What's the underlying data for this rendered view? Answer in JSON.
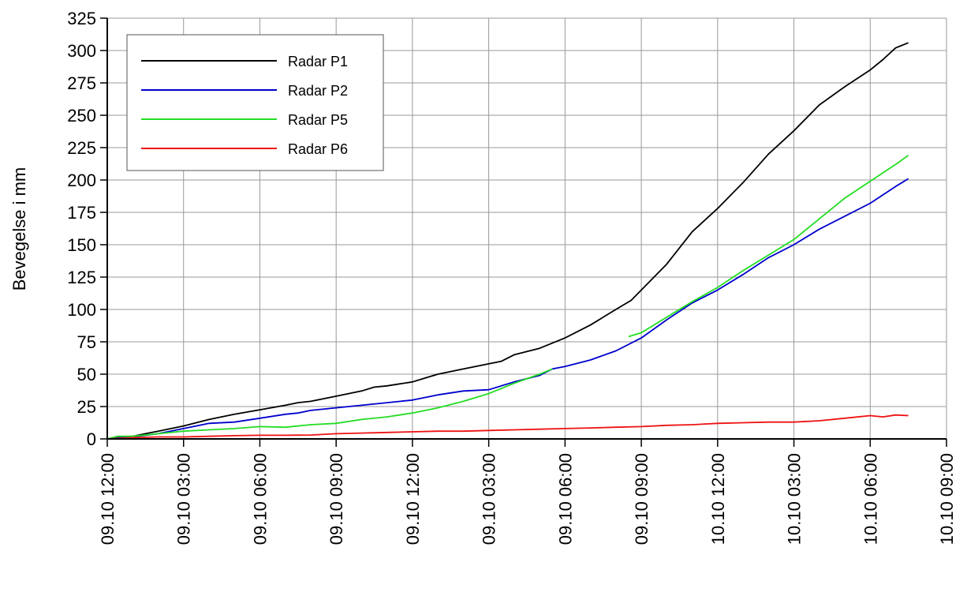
{
  "chart_data": {
    "type": "line",
    "ylabel": "Bevegelse i mm",
    "xlabel": "",
    "title": "",
    "ylim": [
      0,
      325
    ],
    "yticks": [
      0,
      25,
      50,
      75,
      100,
      125,
      150,
      175,
      200,
      225,
      250,
      275,
      300,
      325
    ],
    "x_unit": "hours since 09.10 12:00",
    "xlim": [
      0,
      33
    ],
    "xticks": [
      {
        "value": 0,
        "label": "09.10 12:00"
      },
      {
        "value": 3,
        "label": "09.10 03:00"
      },
      {
        "value": 6,
        "label": "09.10 06:00"
      },
      {
        "value": 9,
        "label": "09.10 09:00"
      },
      {
        "value": 12,
        "label": "09.10 12:00"
      },
      {
        "value": 15,
        "label": "09.10 03:00"
      },
      {
        "value": 18,
        "label": "09.10 06:00"
      },
      {
        "value": 21,
        "label": "09.10 09:00"
      },
      {
        "value": 24,
        "label": "10.10 12:00"
      },
      {
        "value": 27,
        "label": "10.10 03:00"
      },
      {
        "value": 30,
        "label": "10.10 06:00"
      },
      {
        "value": 33,
        "label": "10.10 09:00"
      }
    ],
    "grid": true,
    "legend_position": "top-left",
    "series": [
      {
        "name": "Radar P1",
        "color": "#000000",
        "segments": [
          [
            [
              0,
              0
            ],
            [
              0.4,
              1.5
            ],
            [
              1,
              2
            ],
            [
              1.5,
              4
            ],
            [
              2,
              6
            ],
            [
              3,
              10
            ],
            [
              4,
              15
            ],
            [
              5,
              19
            ],
            [
              6,
              22.5
            ],
            [
              7,
              26
            ],
            [
              7.5,
              28
            ],
            [
              8,
              29
            ],
            [
              9,
              33
            ],
            [
              10,
              37
            ],
            [
              10.5,
              40
            ],
            [
              11,
              41
            ],
            [
              12,
              44
            ],
            [
              12.5,
              47
            ],
            [
              13,
              50
            ],
            [
              14,
              54
            ],
            [
              15,
              58
            ],
            [
              15.5,
              60
            ],
            [
              16,
              65
            ],
            [
              17,
              70
            ],
            [
              18,
              78
            ],
            [
              19,
              88
            ],
            [
              20,
              100
            ],
            [
              20.6,
              107
            ],
            [
              21,
              115
            ],
            [
              22,
              135
            ],
            [
              23,
              160
            ],
            [
              24,
              178
            ],
            [
              25,
              198
            ],
            [
              26,
              220
            ],
            [
              27,
              238
            ],
            [
              28,
              258
            ],
            [
              29,
              272
            ],
            [
              30,
              285
            ],
            [
              30.5,
              293
            ],
            [
              31,
              302
            ],
            [
              31.5,
              306
            ]
          ]
        ]
      },
      {
        "name": "Radar P2",
        "color": "#0000cc",
        "segments": [
          [
            [
              0,
              0
            ],
            [
              0.4,
              1
            ],
            [
              1,
              1.5
            ],
            [
              2,
              4
            ],
            [
              3,
              8
            ],
            [
              4,
              12
            ],
            [
              5,
              13
            ],
            [
              6,
              16
            ],
            [
              7,
              19
            ],
            [
              7.5,
              20
            ],
            [
              8,
              22
            ],
            [
              9,
              24
            ],
            [
              10,
              26
            ],
            [
              11,
              28
            ],
            [
              12,
              30
            ],
            [
              13,
              34
            ],
            [
              14,
              37
            ],
            [
              15,
              38
            ],
            [
              16,
              44
            ],
            [
              17,
              49
            ],
            [
              17.5,
              54
            ],
            [
              18,
              56
            ],
            [
              19,
              61
            ],
            [
              20,
              68
            ],
            [
              21,
              78
            ],
            [
              22,
              92
            ],
            [
              23,
              105
            ],
            [
              24,
              115
            ],
            [
              25,
              127
            ],
            [
              26,
              140
            ],
            [
              27,
              150
            ],
            [
              28,
              162
            ],
            [
              29,
              172
            ],
            [
              30,
              182
            ],
            [
              31,
              195
            ],
            [
              31.5,
              201
            ]
          ]
        ]
      },
      {
        "name": "Radar P5",
        "color": "#22dd22",
        "segments": [
          [
            [
              0,
              0
            ],
            [
              0.4,
              2
            ],
            [
              1,
              2
            ],
            [
              2,
              4
            ],
            [
              3,
              6
            ],
            [
              4,
              7
            ],
            [
              5,
              8
            ],
            [
              6,
              9.5
            ],
            [
              7,
              9
            ],
            [
              8,
              11
            ],
            [
              9,
              12
            ],
            [
              10,
              15
            ],
            [
              11,
              17
            ],
            [
              12,
              20
            ],
            [
              13,
              24
            ],
            [
              14,
              29
            ],
            [
              15,
              35
            ],
            [
              16,
              43
            ],
            [
              17,
              50
            ],
            [
              17.5,
              54
            ]
          ],
          [
            [
              20.5,
              79
            ],
            [
              21,
              82
            ],
            [
              22,
              94
            ],
            [
              23,
              106
            ],
            [
              24,
              117
            ],
            [
              25,
              130
            ],
            [
              26,
              142
            ],
            [
              27,
              154
            ],
            [
              28,
              170
            ],
            [
              29,
              186
            ],
            [
              30,
              199
            ],
            [
              31,
              212
            ],
            [
              31.5,
              219
            ]
          ]
        ]
      },
      {
        "name": "Radar P6",
        "color": "#ee1111",
        "segments": [
          [
            [
              0,
              0
            ],
            [
              1,
              1
            ],
            [
              2,
              1.5
            ],
            [
              3,
              1.5
            ],
            [
              4,
              2
            ],
            [
              5,
              2.5
            ],
            [
              6,
              2.8
            ],
            [
              7,
              2.8
            ],
            [
              8,
              3
            ],
            [
              9,
              4
            ],
            [
              10,
              4.5
            ],
            [
              11,
              5
            ],
            [
              12,
              5.5
            ],
            [
              13,
              6
            ],
            [
              14,
              6
            ],
            [
              15,
              6.5
            ],
            [
              16,
              7
            ],
            [
              17,
              7.5
            ],
            [
              18,
              8
            ],
            [
              19,
              8.5
            ],
            [
              20,
              9
            ],
            [
              21,
              9.5
            ],
            [
              22,
              10.5
            ],
            [
              23,
              11
            ],
            [
              24,
              12
            ],
            [
              25,
              12.5
            ],
            [
              26,
              13
            ],
            [
              27,
              13
            ],
            [
              28,
              14
            ],
            [
              29,
              16
            ],
            [
              30,
              18
            ],
            [
              30.5,
              17
            ],
            [
              31,
              18.5
            ],
            [
              31.5,
              18
            ]
          ]
        ]
      }
    ]
  }
}
